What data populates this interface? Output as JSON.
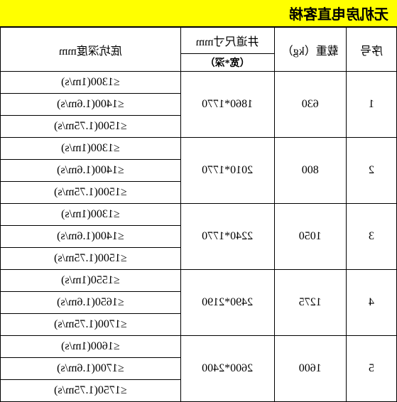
{
  "title": "无机房电直客梯",
  "headers": {
    "seq": "序号",
    "weight": "载重（kg）",
    "shaft_main": "井道尺寸mm",
    "shaft_sub": "（宽*深）",
    "pit": "底坑深度mm"
  },
  "rows": [
    {
      "seq": "1",
      "weight": "630",
      "shaft": "1860*1770",
      "pits": [
        "≤1300(1m/s)",
        "≤1400(1.6m/s)",
        "≤1500(1.75m/s)"
      ]
    },
    {
      "seq": "2",
      "weight": "800",
      "shaft": "2010*1770",
      "pits": [
        "≤1300(1m/s)",
        "≤1400(1.6m/s)",
        "≤1500(1.75m/s)"
      ]
    },
    {
      "seq": "3",
      "weight": "1050",
      "shaft": "2240*1770",
      "pits": [
        "≤1300(1m/s)",
        "≤1400(1.6m/s)",
        "≤1500(1.75m/s)"
      ]
    },
    {
      "seq": "4",
      "weight": "1275",
      "shaft": "2490*2190",
      "pits": [
        "≤1550(1m/s)",
        "≤1650(1.6m/s)",
        "≤1700(1.75m/s)"
      ]
    },
    {
      "seq": "5",
      "weight": "1600",
      "shaft": "2600*2400",
      "pits": [
        "≤1600(1m/s)",
        "≤1700(1.6m/s)",
        "≤1750(1.75m/s)"
      ]
    }
  ],
  "colors": {
    "title_bg": "#ffff00",
    "border": "#000000",
    "bg": "#ffffff"
  }
}
